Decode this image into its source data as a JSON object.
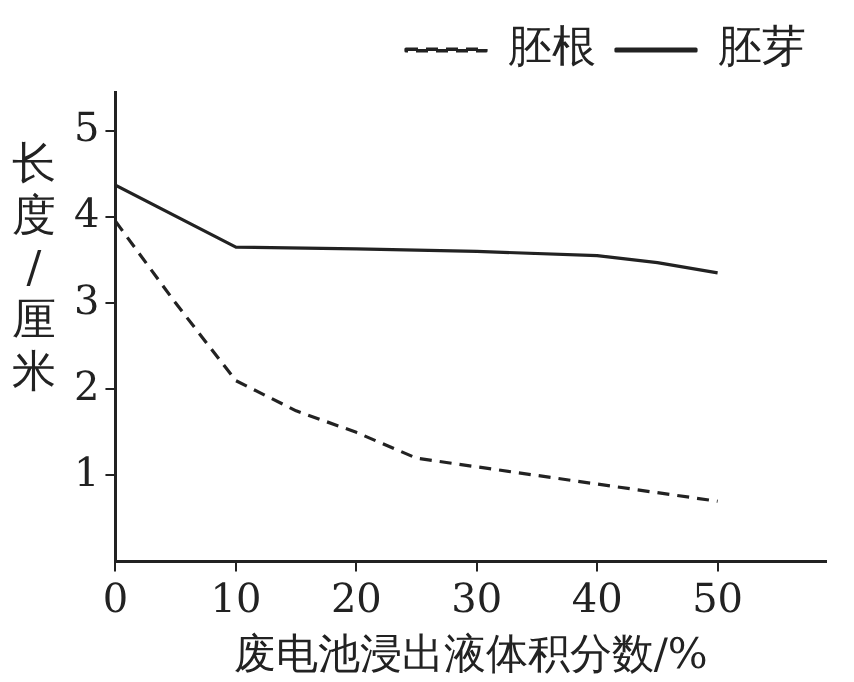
{
  "chart_data": {
    "type": "line",
    "xlabel": "废电池浸出液体积分数/%",
    "ylabel": "长度/厘米",
    "xlim": [
      0,
      59
    ],
    "xticks": [
      0,
      10,
      20,
      30,
      40,
      50
    ],
    "ylim": [
      0,
      5.45
    ],
    "yticks": [
      1,
      2,
      3,
      4,
      5
    ],
    "series": [
      {
        "name": "胚根",
        "color": "#222222",
        "line_style": "dashed",
        "x": [
          0,
          5,
          10,
          15,
          20,
          25,
          30,
          40,
          50
        ],
        "values": [
          3.95,
          3.0,
          2.1,
          1.75,
          1.5,
          1.2,
          1.1,
          0.9,
          0.7
        ]
      },
      {
        "name": "胚芽",
        "color": "#222222",
        "line_style": "solid",
        "x": [
          0,
          10,
          20,
          30,
          40,
          45,
          50
        ],
        "values": [
          4.37,
          3.65,
          3.63,
          3.6,
          3.55,
          3.47,
          3.35
        ]
      }
    ],
    "legend": "top right",
    "grid": false,
    "marker": "none"
  }
}
